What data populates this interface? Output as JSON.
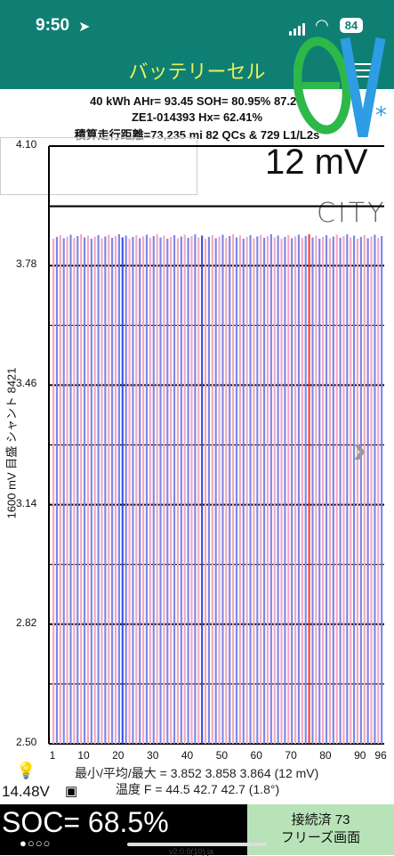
{
  "status": {
    "time": "9:50",
    "location_icon": "location-arrow-icon",
    "battery": "84"
  },
  "nav": {
    "title": "バッテリーセル"
  },
  "header": {
    "line1": "40 kWh  AHr= 93.45  SOH= 80.95%  87.2V",
    "line2": "ZE1-014393  Hx= 62.41%",
    "line3": "積算走行距離=73,235 mi 82 QCs & 729 L1/L2s"
  },
  "logo": {
    "text": "ev*"
  },
  "chart_header": {
    "mv": "12 mV",
    "model": "CITY"
  },
  "chart_data": {
    "type": "bar",
    "ylabel": "1600 mV 目盛  シャント 8421",
    "ylim": [
      2.5,
      4.1
    ],
    "yticks": [
      "4.10",
      "3.78",
      "3.46",
      "3.14",
      "2.82",
      "2.50"
    ],
    "xticks": [
      "1",
      "10",
      "20",
      "30",
      "40",
      "50",
      "60",
      "70",
      "80",
      "90",
      "96"
    ],
    "num_cells": 96,
    "min_value": 3.852,
    "max_value": 3.864,
    "pink": "#f4a7c0",
    "blue": "#7b86e8",
    "red": "#ff3b3b",
    "darkblue": "#3b4fe0"
  },
  "stats": {
    "line1": "最小/平均/最大 = 3.852 3.858 3.864  (12 mV)",
    "line2": "温度 F = 44.5  42.7  42.7  (1.8°)"
  },
  "bottom": {
    "voltage": "14.48V",
    "soc": "SOC= 68.5%",
    "dots": "●○○○",
    "conn1": "接続済 73",
    "conn2": "フリーズ画面",
    "version": "v2.0.0(10) ja"
  }
}
